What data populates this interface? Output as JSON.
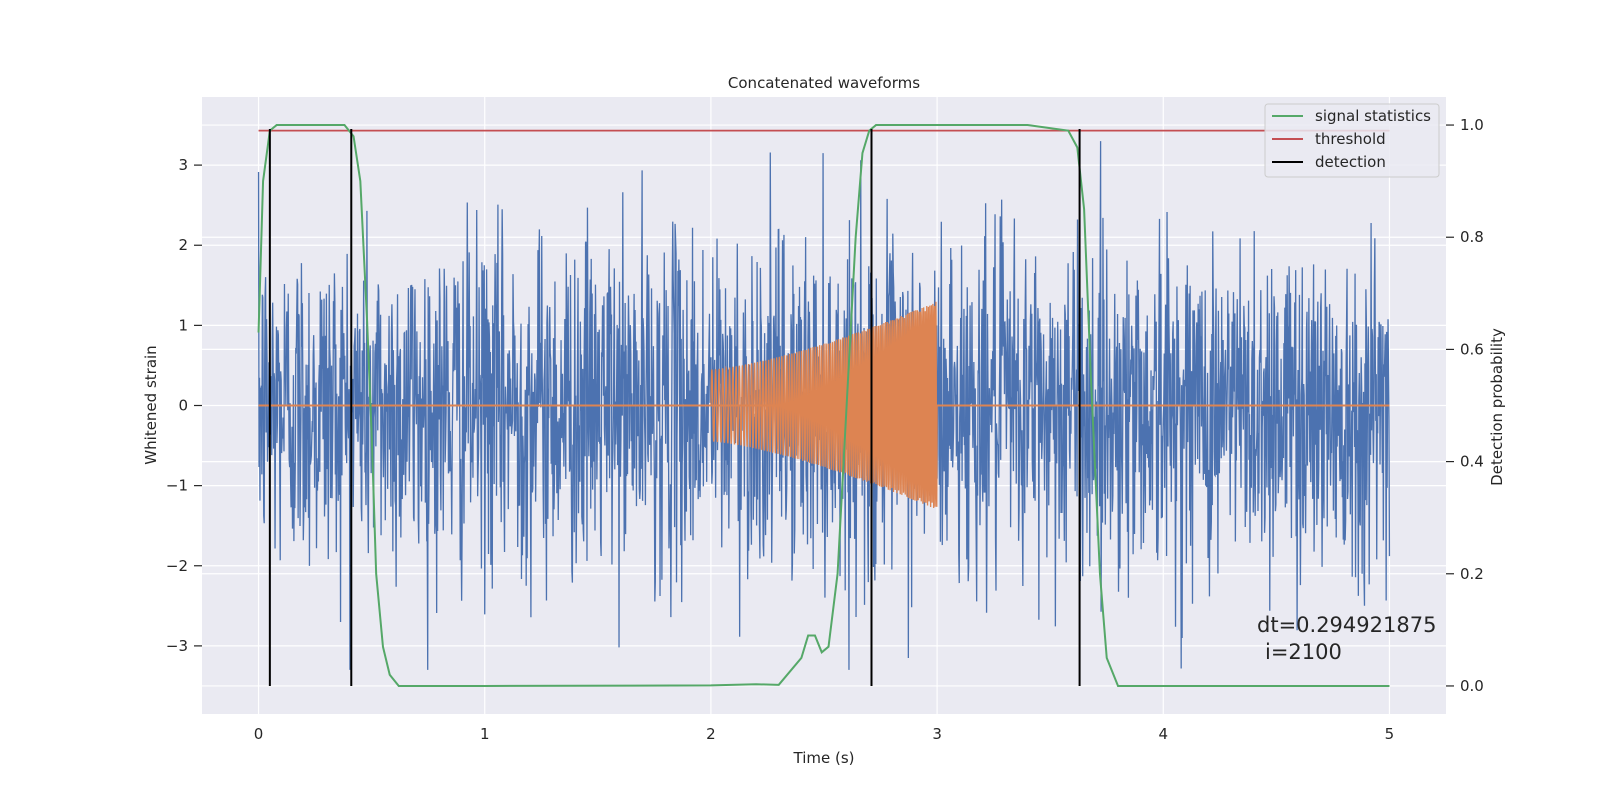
{
  "chart_data": {
    "type": "line",
    "title": "Concatenated waveforms",
    "xlabel": "Time (s)",
    "ylabel": "Whitened strain",
    "y2label": "Detection probability",
    "xlim": [
      -0.25,
      5.25
    ],
    "ylim": [
      -3.85,
      3.85
    ],
    "y2lim": [
      -0.05,
      1.05
    ],
    "grid": true,
    "x_ticks": [
      0,
      1,
      2,
      3,
      4,
      5
    ],
    "y_ticks": [
      -3,
      -2,
      -1,
      0,
      1,
      2,
      3
    ],
    "y2_ticks": [
      0.0,
      0.2,
      0.4,
      0.6,
      0.8,
      1.0
    ],
    "x_tick_labels": [
      "0",
      "1",
      "2",
      "3",
      "4",
      "5"
    ],
    "y_tick_labels": [
      "−3",
      "−2",
      "−1",
      "0",
      "1",
      "2",
      "3"
    ],
    "y2_tick_labels": [
      "0.0",
      "0.2",
      "0.4",
      "0.6",
      "0.8",
      "1.0"
    ],
    "legend_position": "top-right",
    "legend": [
      {
        "label": "signal statistics",
        "color": "#55a868"
      },
      {
        "label": "threshold",
        "color": "#c44e52"
      },
      {
        "label": "detection",
        "color": "#000000"
      }
    ],
    "series": [
      {
        "name": "",
        "role": "whitened strain noise",
        "color": "#4c72b0",
        "x_range": [
          0,
          5
        ],
        "approx_amplitude": 3.3
      },
      {
        "name": "",
        "role": "injected chirp",
        "color": "#dd8452",
        "start": 2.0,
        "end": 3.0,
        "start_amplitude": 0.45,
        "end_amplitude": 1.3
      },
      {
        "name": "signal statistics",
        "axis": "right",
        "color": "#55a868",
        "x": [
          0.0,
          0.02,
          0.05,
          0.08,
          0.12,
          0.2,
          0.3,
          0.38,
          0.42,
          0.45,
          0.48,
          0.5,
          0.52,
          0.55,
          0.58,
          0.62,
          1.0,
          2.0,
          2.2,
          2.3,
          2.4,
          2.43,
          2.46,
          2.49,
          2.52,
          2.56,
          2.6,
          2.64,
          2.67,
          2.7,
          2.73,
          2.78,
          3.0,
          3.4,
          3.58,
          3.62,
          3.65,
          3.68,
          3.72,
          3.75,
          3.8,
          4.0,
          5.0
        ],
        "y": [
          0.63,
          0.9,
          0.99,
          1.0,
          1.0,
          1.0,
          1.0,
          1.0,
          0.98,
          0.9,
          0.65,
          0.45,
          0.2,
          0.07,
          0.02,
          0.0,
          0.0,
          0.001,
          0.003,
          0.002,
          0.05,
          0.09,
          0.09,
          0.06,
          0.07,
          0.2,
          0.5,
          0.8,
          0.95,
          0.99,
          1.0,
          1.0,
          1.0,
          1.0,
          0.99,
          0.96,
          0.85,
          0.55,
          0.2,
          0.05,
          0.0,
          0.0,
          0.0
        ]
      },
      {
        "name": "threshold",
        "axis": "right",
        "color": "#c44e52",
        "x": [
          0,
          5
        ],
        "y": [
          0.99,
          0.99
        ]
      },
      {
        "name": "detection",
        "axis": "left",
        "color": "#000000",
        "type": "vlines",
        "x": [
          0.05,
          0.41,
          2.71,
          3.63
        ],
        "ymin": -3.5,
        "ymax": 3.45
      }
    ],
    "annotation": {
      "lines": [
        "dt=0.294921875",
        "i=2100"
      ],
      "x": 4.52,
      "y": -3.0
    }
  }
}
